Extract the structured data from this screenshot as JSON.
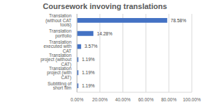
{
  "chart_data": {
    "type": "bar",
    "orientation": "horizontal",
    "title": "Coursework invoving translations",
    "categories": [
      "Translation (without CAT tools)",
      "Translation portfolio",
      "Translation executed with CAT",
      "Translation project (without CAT)",
      "Translation project (with CAT)",
      "Subtitling of short film"
    ],
    "values": [
      78.58,
      14.28,
      3.57,
      1.19,
      1.19,
      1.19
    ],
    "value_labels": [
      "78.58%",
      "14.28%",
      "3.57%",
      "1.19%",
      "1.19%",
      "1.19%"
    ],
    "data_labels": true,
    "color": "#4472c4",
    "xlim": [
      0,
      100
    ],
    "xticks": [
      {
        "value": 0,
        "label": "0.00%"
      },
      {
        "value": 20,
        "label": "20.00%"
      },
      {
        "value": 40,
        "label": "40.00%"
      },
      {
        "value": 60,
        "label": "60.00%"
      },
      {
        "value": 80,
        "label": "80.00%"
      },
      {
        "value": 100,
        "label": "100.00%"
      }
    ],
    "grid": true
  }
}
